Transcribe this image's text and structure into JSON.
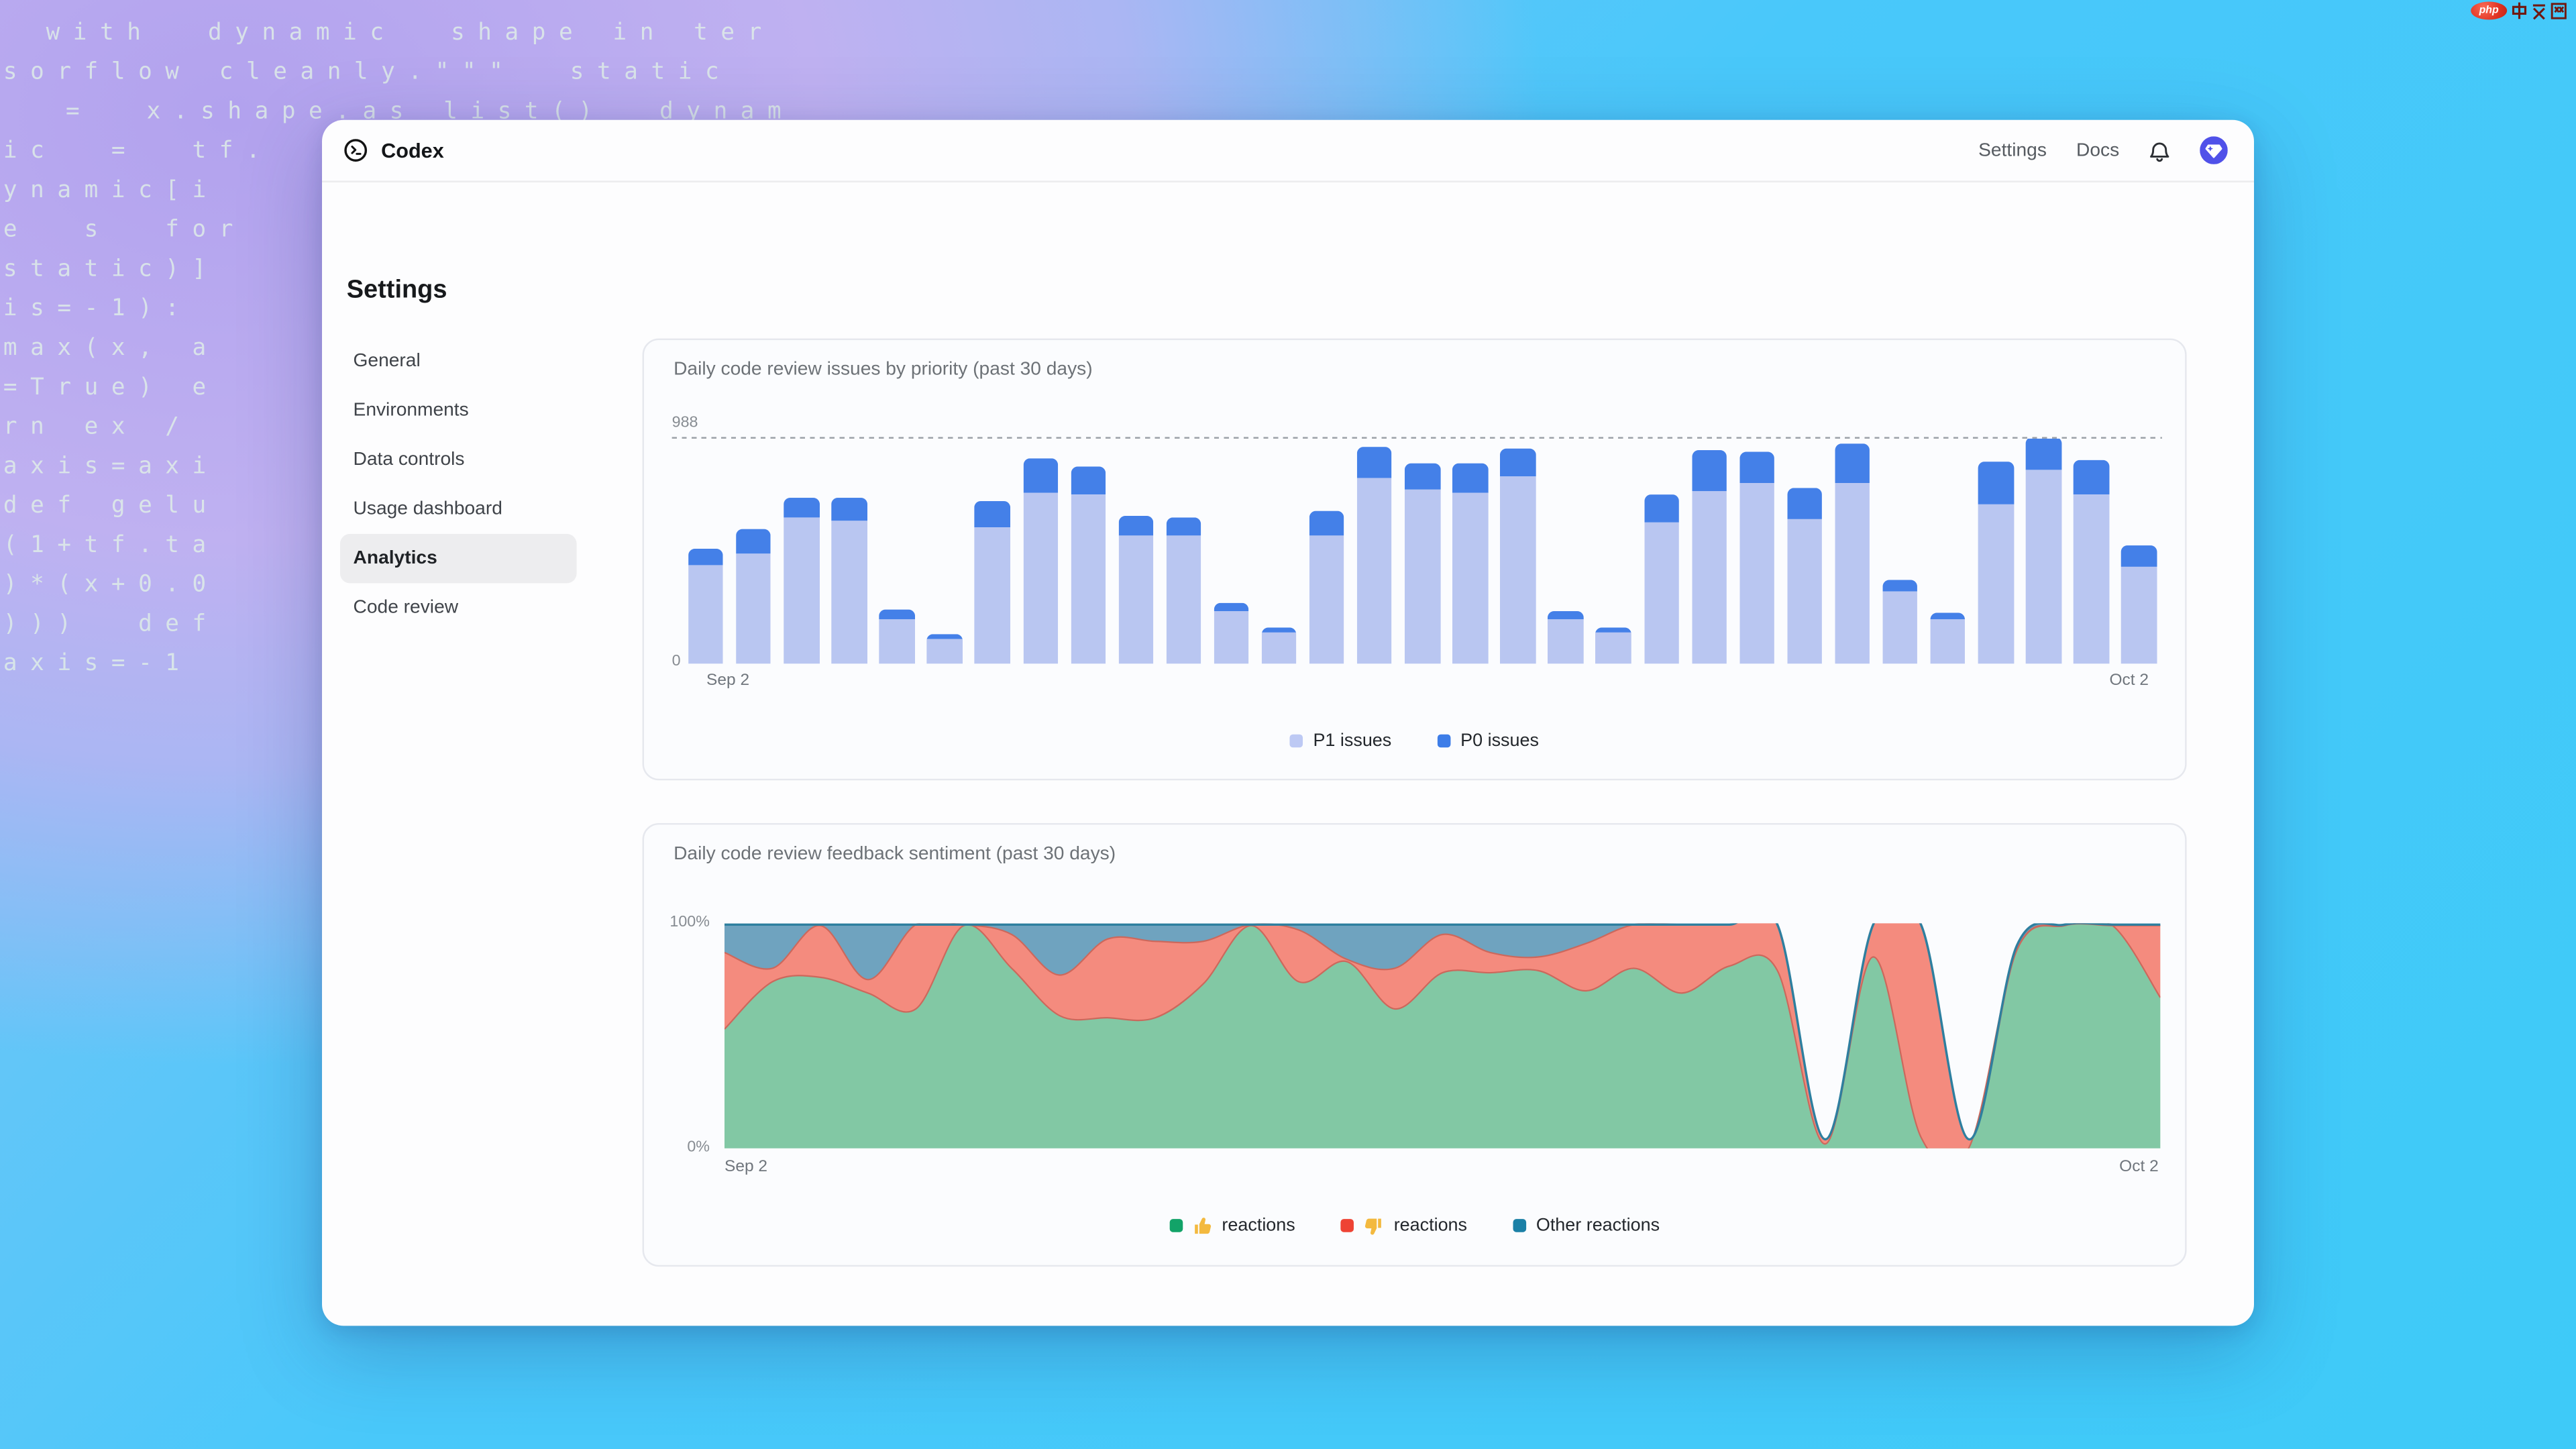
{
  "watermark": {
    "logo_text": "php",
    "site_text": "中文网"
  },
  "background": {
    "code_lines": [
      "with  dynamic  shape in ter",
      "sorflow cleanly.\"\"\"  static",
      "=  x.shape.as list()  dynam",
      "ic  =  tf.",
      "ynamic[i",
      "e  s  for",
      "static)]",
      "is=-1):",
      "max(x, a",
      "=True) e",
      "rn ex /",
      "axis=axi",
      "def gelu",
      "(1+tf.ta",
      ")*(x+0.0",
      ")))  def",
      "axis=-1"
    ]
  },
  "header": {
    "brand": "Codex",
    "nav": [
      {
        "label": "Settings"
      },
      {
        "label": "Docs"
      }
    ]
  },
  "sidebar": {
    "title": "Settings",
    "items": [
      {
        "label": "General",
        "active": false
      },
      {
        "label": "Environments",
        "active": false
      },
      {
        "label": "Data controls",
        "active": false
      },
      {
        "label": "Usage dashboard",
        "active": false
      },
      {
        "label": "Analytics",
        "active": true
      },
      {
        "label": "Code review",
        "active": false
      }
    ]
  },
  "chart_data": [
    {
      "type": "bar",
      "title": "Daily code review issues by priority (past 30 days)",
      "stacked": true,
      "ylim": [
        0,
        988
      ],
      "gridline_value": 988,
      "y_ticks": [
        "988",
        "0"
      ],
      "x_tick_labels": {
        "start": "Sep 2",
        "end": "Oct 2"
      },
      "legend": [
        {
          "text": "P1 issues",
          "color": "#bdc9f4"
        },
        {
          "text": "P0 issues",
          "color": "#3d7de8"
        }
      ],
      "colors": {
        "p1": "#b9c6f1",
        "p0": "#4480e8"
      },
      "series": [
        {
          "name": "P1 issues",
          "values": [
            431,
            478,
            639,
            622,
            197,
            106,
            594,
            743,
            736,
            561,
            556,
            227,
            134,
            558,
            809,
            757,
            744,
            813,
            196,
            137,
            618,
            755,
            789,
            630,
            788,
            313,
            191,
            696,
            848,
            736,
            423
          ]
        },
        {
          "name": "P0 issues",
          "values": [
            74,
            106,
            85,
            99,
            40,
            25,
            112,
            151,
            122,
            83,
            83,
            35,
            22,
            111,
            136,
            117,
            130,
            125,
            30,
            23,
            123,
            177,
            132,
            134,
            175,
            52,
            30,
            184,
            137,
            153,
            92
          ]
        }
      ]
    },
    {
      "type": "area",
      "title": "Daily code review feedback sentiment (past 30 days)",
      "stacked_percent": true,
      "ylim": [
        0,
        100
      ],
      "y_ticks": [
        "100%",
        "0%"
      ],
      "x_tick_labels": {
        "start": "Sep 2",
        "end": "Oct 2"
      },
      "legend": [
        {
          "emoji": "👍",
          "text": "reactions",
          "icon": "thumbs-up-icon",
          "color": "#12a368"
        },
        {
          "emoji": "👎",
          "text": "reactions",
          "icon": "thumbs-down-icon",
          "color": "#ee4334"
        },
        {
          "text": "Other reactions",
          "color": "#1b80a6"
        }
      ],
      "colors": {
        "thumbs_up_fill": "#82c8a4",
        "thumbs_down_fill": "#f48b7e",
        "other_fill": "#6fa3bf",
        "envelope_line": "#2e7f9f",
        "boundary_line": "#cc685c"
      },
      "series": [
        {
          "name": "👍 reactions",
          "values": [
            53,
            74,
            76,
            69,
            62,
            99,
            80,
            59,
            58,
            58,
            73,
            99,
            74,
            83,
            62,
            78,
            78,
            79,
            70,
            80,
            69,
            81,
            79,
            2,
            85,
            5,
            0,
            88,
            99,
            99,
            67
          ]
        },
        {
          "name": "👎 reactions",
          "values": [
            34,
            6,
            23,
            6,
            38,
            1,
            15,
            18,
            35,
            34,
            19,
            1,
            23,
            1,
            18,
            17,
            9,
            6,
            21,
            20,
            31,
            19,
            21,
            2,
            15,
            95,
            4,
            0,
            0,
            0,
            32
          ]
        },
        {
          "name": "Other reactions",
          "values": [
            13,
            20,
            1,
            25,
            0,
            0,
            5,
            23,
            7,
            8,
            8,
            0,
            3,
            16,
            20,
            5,
            13,
            15,
            9,
            0,
            0,
            0,
            0,
            0,
            0,
            0,
            0,
            2,
            1,
            1,
            1
          ]
        }
      ]
    }
  ]
}
